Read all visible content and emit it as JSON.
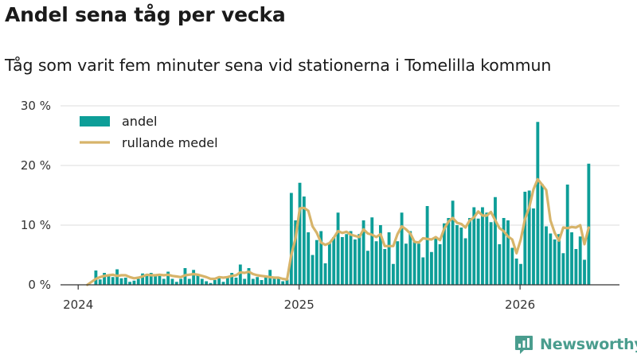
{
  "chart_data": {
    "type": "bar",
    "title": "Andel sena tåg per vecka",
    "subtitle": "Tåg som varit fem minuter sena vid stationerna i Tomelilla kommun",
    "xlabel": "",
    "ylabel": "",
    "ylim": [
      0,
      30
    ],
    "y_ticks": [
      0,
      10,
      20,
      30
    ],
    "y_tick_labels": [
      "0 %",
      "10 %",
      "20 %",
      "30 %"
    ],
    "x_ticks": [
      2024,
      2025,
      2026
    ],
    "x_tick_labels": [
      "2024",
      "2025",
      "2026"
    ],
    "week_start": 2024.08,
    "weeks_per_year": 52,
    "colors": {
      "bar": "#0d9e98",
      "line": "#d7b46a",
      "grid": "#dddddd",
      "axis": "#333333"
    },
    "legend": [
      {
        "key": "andel",
        "label": "andel",
        "kind": "bar"
      },
      {
        "key": "rullande",
        "label": "rullande medel",
        "kind": "line"
      }
    ],
    "series": [
      {
        "name": "andel",
        "values": [
          2.4,
          0.9,
          2.0,
          1.5,
          1.3,
          2.6,
          1.1,
          1.2,
          0.5,
          0.7,
          1.0,
          1.9,
          1.5,
          2.0,
          1.5,
          1.8,
          1.0,
          2.2,
          1.0,
          0.5,
          1.0,
          2.8,
          1.0,
          2.5,
          1.6,
          1.0,
          0.6,
          0.3,
          0.8,
          1.3,
          0.5,
          1.3,
          2.0,
          1.2,
          3.4,
          1.0,
          2.8,
          1.0,
          1.3,
          0.8,
          1.2,
          2.5,
          1.0,
          1.2,
          0.6,
          0.9,
          15.4,
          10.8,
          17.1,
          14.8,
          8.8,
          5.0,
          7.5,
          9.0,
          3.6,
          7.0,
          8.0,
          12.1,
          8.0,
          8.5,
          9.0,
          7.6,
          8.5,
          10.8,
          5.7,
          11.3,
          7.3,
          10.0,
          6.0,
          8.8,
          3.5,
          7.3,
          12.1,
          6.9,
          9.0,
          7.2,
          6.9,
          4.6,
          13.2,
          5.5,
          8.0,
          6.8,
          10.3,
          11.2,
          14.1,
          10.0,
          9.6,
          7.8,
          11.2,
          13.0,
          11.1,
          13.0,
          12.1,
          10.5,
          14.7,
          6.8,
          11.2,
          10.8,
          6.2,
          4.4,
          3.5,
          15.6,
          15.8,
          12.8,
          27.3,
          16.9,
          9.8,
          8.6,
          7.6,
          8.5,
          5.3,
          16.8,
          8.8,
          6.0,
          8.1,
          4.2,
          20.3
        ]
      },
      {
        "name": "rullande medel",
        "values": [
          1.0,
          1.3,
          1.5,
          1.6,
          1.7,
          1.5,
          1.6,
          1.6,
          1.3,
          1.1,
          1.2,
          1.4,
          1.7,
          1.6,
          1.6,
          1.7,
          1.6,
          1.7,
          1.5,
          1.4,
          1.3,
          1.6,
          1.7,
          1.8,
          1.7,
          1.5,
          1.3,
          1.0,
          1.0,
          1.3,
          1.2,
          1.3,
          1.5,
          1.6,
          2.1,
          2.0,
          2.2,
          1.8,
          1.6,
          1.5,
          1.4,
          1.3,
          1.2,
          1.2,
          1.0,
          0.9,
          5.0,
          7.8,
          12.8,
          12.9,
          12.4,
          9.8,
          8.7,
          7.1,
          6.7,
          7.0,
          7.9,
          9.0,
          8.7,
          8.9,
          8.4,
          8.2,
          8.0,
          9.3,
          8.6,
          8.4,
          8.0,
          8.5,
          6.5,
          6.5,
          6.5,
          8.5,
          9.8,
          9.3,
          8.6,
          7.2,
          7.1,
          7.8,
          7.7,
          7.6,
          8.0,
          7.5,
          9.4,
          10.6,
          11.2,
          10.4,
          10.2,
          9.6,
          10.8,
          11.3,
          12.3,
          11.6,
          11.6,
          12.2,
          10.8,
          9.5,
          9.0,
          8.1,
          7.6,
          5.3,
          7.6,
          11.0,
          13.0,
          16.0,
          17.7,
          16.8,
          15.9,
          10.8,
          8.7,
          7.4,
          9.6,
          9.5,
          9.7,
          9.6,
          10.0,
          6.8,
          9.6
        ]
      }
    ]
  },
  "branding": {
    "name": "Newsworthy"
  }
}
